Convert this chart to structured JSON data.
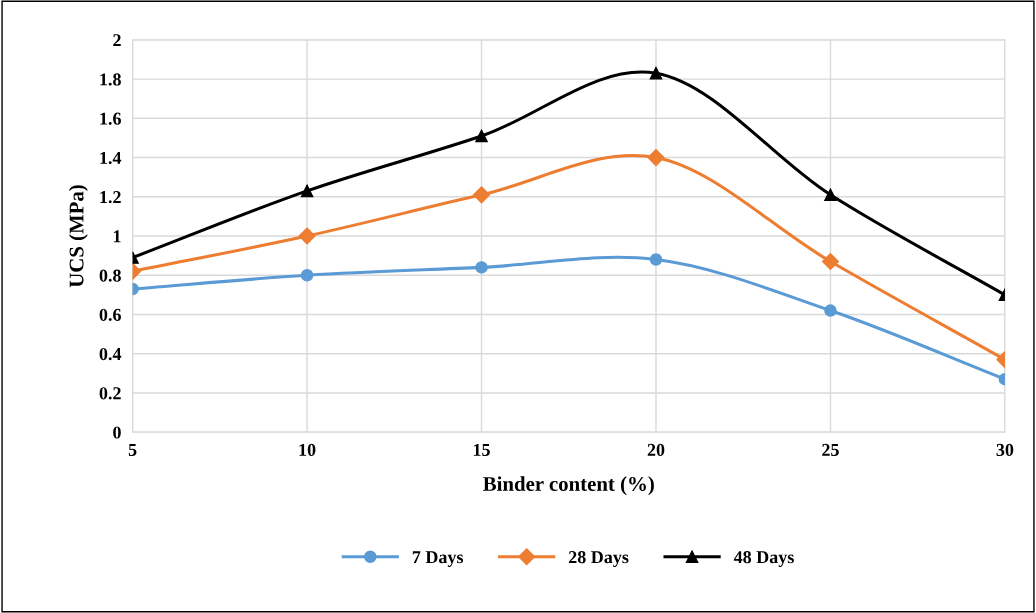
{
  "chart_data": {
    "type": "line",
    "xlabel": "Binder content (%)",
    "ylabel": "UCS (MPa)",
    "x": [
      5,
      10,
      15,
      20,
      25,
      30
    ],
    "series": [
      {
        "name": "7 Days",
        "color": "#5b9bd5",
        "marker": "circle",
        "values": [
          0.73,
          0.8,
          0.84,
          0.88,
          0.62,
          0.27
        ]
      },
      {
        "name": "28 Days",
        "color": "#ed7d31",
        "marker": "diamond",
        "values": [
          0.82,
          1.0,
          1.21,
          1.4,
          0.87,
          0.37
        ]
      },
      {
        "name": "48 Days",
        "color": "#000000",
        "marker": "triangle",
        "values": [
          0.89,
          1.23,
          1.51,
          1.83,
          1.21,
          0.7
        ]
      }
    ],
    "xlim": [
      5,
      30
    ],
    "xticks": [
      5,
      10,
      15,
      20,
      25,
      30
    ],
    "ylim": [
      0,
      2
    ],
    "yticks": [
      0,
      0.2,
      0.4,
      0.6,
      0.8,
      1,
      1.2,
      1.4,
      1.6,
      1.8,
      2
    ],
    "grid": true,
    "legend": "bottom",
    "line_style": "solid"
  }
}
